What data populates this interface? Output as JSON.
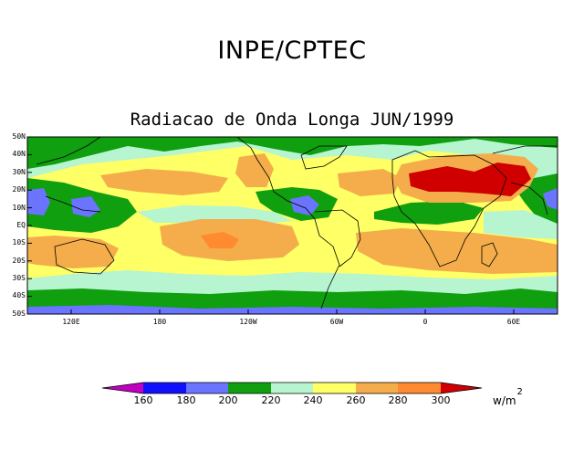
{
  "title": "INPE/CPTEC",
  "subtitle": "Radiacao de Onda Longa JUN/1999",
  "lat_labels": [
    "50N",
    "40N",
    "30N",
    "20N",
    "10N",
    "EQ",
    "10S",
    "20S",
    "30S",
    "40S",
    "50S"
  ],
  "lon_labels": [
    "120E",
    "180",
    "120W",
    "60W",
    "0",
    "60E"
  ],
  "colorbar": {
    "levels": [
      "160",
      "180",
      "200",
      "220",
      "240",
      "260",
      "280",
      "300"
    ],
    "colors": [
      "#c000c0",
      "#1010ff",
      "#6a74ff",
      "#0f9f0f",
      "#b6f5d0",
      "#ffff66",
      "#f4ad4a",
      "#ff8a30",
      "#d00000"
    ]
  },
  "units": {
    "base": "w/m",
    "exponent": "2"
  }
}
